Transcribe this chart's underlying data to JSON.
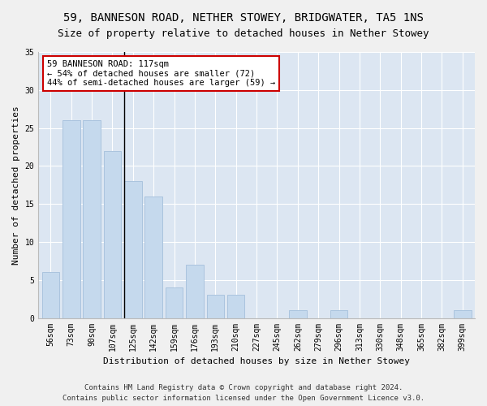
{
  "title1": "59, BANNESON ROAD, NETHER STOWEY, BRIDGWATER, TA5 1NS",
  "title2": "Size of property relative to detached houses in Nether Stowey",
  "xlabel": "Distribution of detached houses by size in Nether Stowey",
  "ylabel": "Number of detached properties",
  "categories": [
    "56sqm",
    "73sqm",
    "90sqm",
    "107sqm",
    "125sqm",
    "142sqm",
    "159sqm",
    "176sqm",
    "193sqm",
    "210sqm",
    "227sqm",
    "245sqm",
    "262sqm",
    "279sqm",
    "296sqm",
    "313sqm",
    "330sqm",
    "348sqm",
    "365sqm",
    "382sqm",
    "399sqm"
  ],
  "values": [
    6,
    26,
    26,
    22,
    18,
    16,
    4,
    7,
    3,
    3,
    0,
    0,
    1,
    0,
    1,
    0,
    0,
    0,
    0,
    0,
    1
  ],
  "bar_color": "#c5d9ed",
  "bar_edgecolor": "#aac4de",
  "annotation_title": "59 BANNESON ROAD: 117sqm",
  "annotation_line1": "← 54% of detached houses are smaller (72)",
  "annotation_line2": "44% of semi-detached houses are larger (59) →",
  "annotation_box_edgecolor": "#cc0000",
  "ylim": [
    0,
    35
  ],
  "yticks": [
    0,
    5,
    10,
    15,
    20,
    25,
    30,
    35
  ],
  "footer1": "Contains HM Land Registry data © Crown copyright and database right 2024.",
  "footer2": "Contains public sector information licensed under the Open Government Licence v3.0.",
  "bg_color": "#dce6f2",
  "fig_color": "#f0f0f0",
  "title_fontsize": 10,
  "subtitle_fontsize": 9,
  "axis_label_fontsize": 8,
  "tick_fontsize": 7,
  "footer_fontsize": 6.5,
  "annot_fontsize": 7.5
}
